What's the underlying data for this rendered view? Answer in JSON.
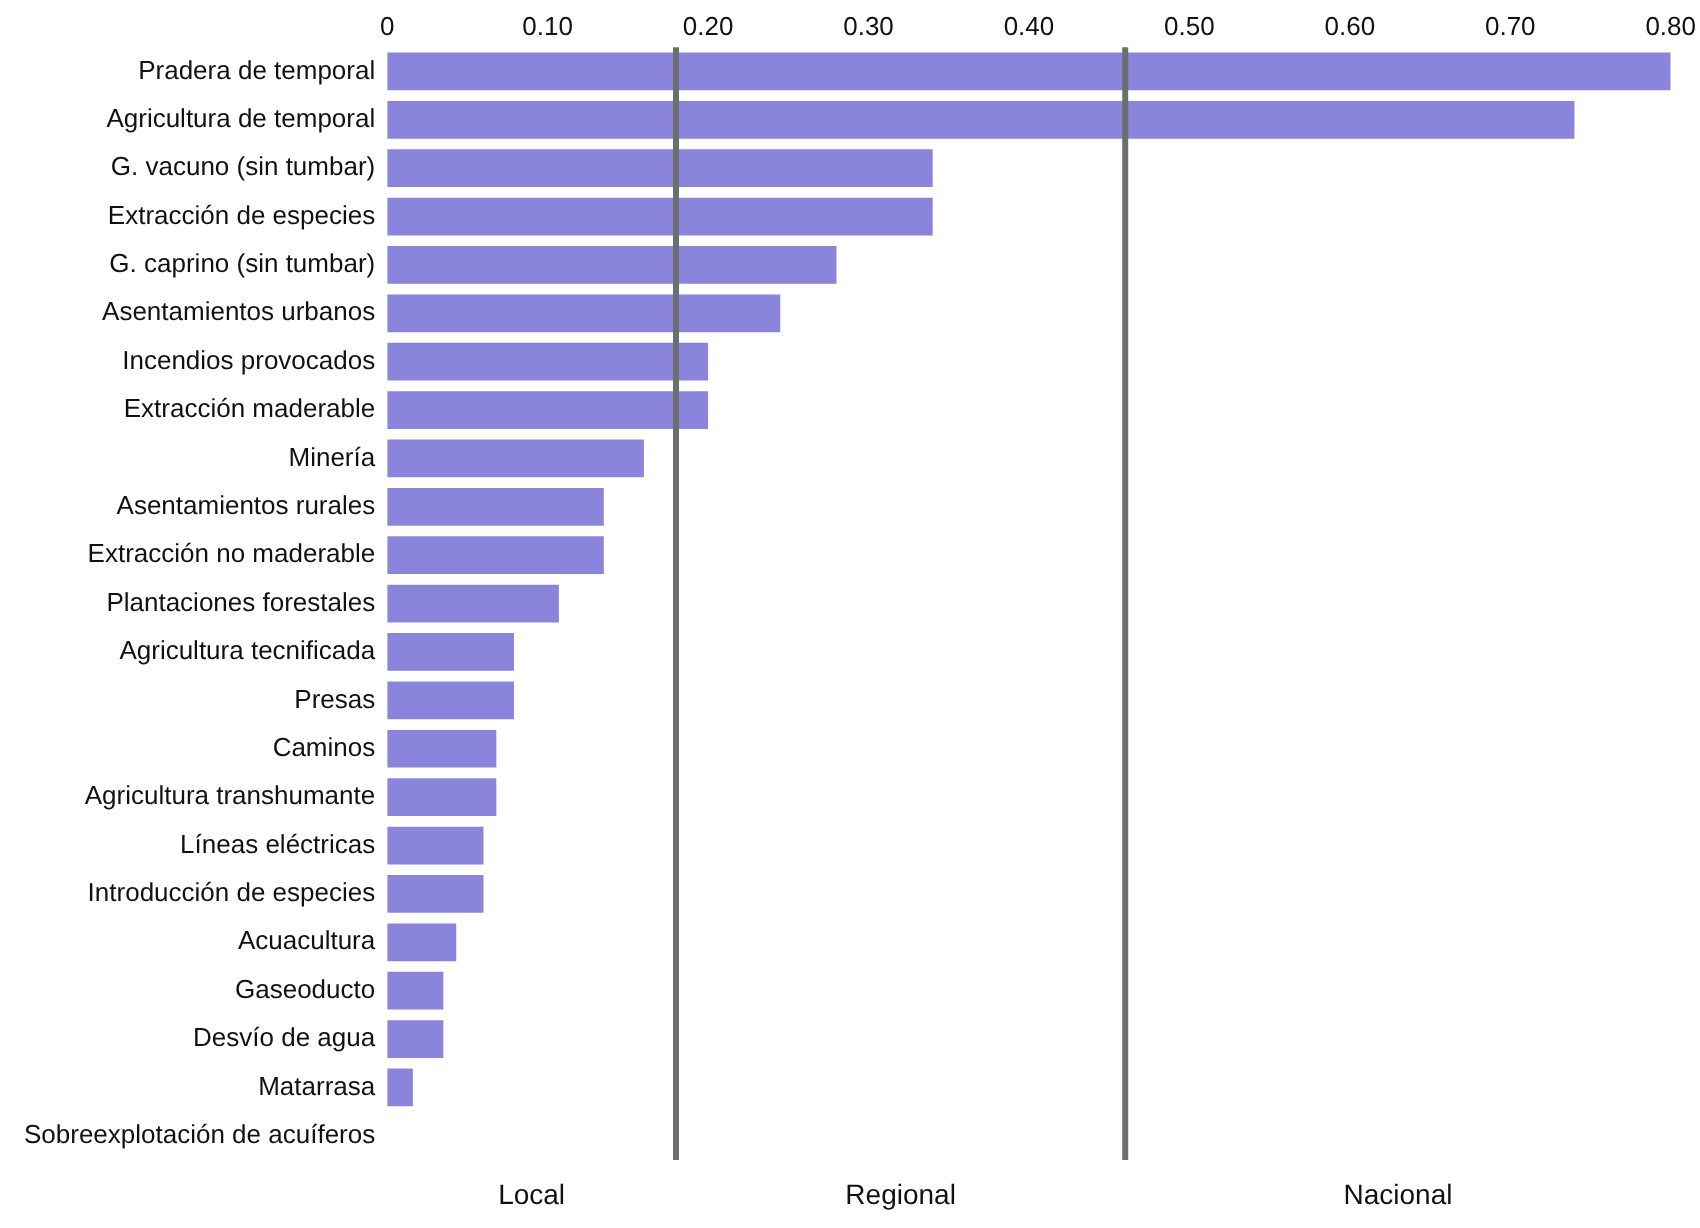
{
  "chart_data": {
    "type": "bar",
    "orientation": "horizontal",
    "categories": [
      "Pradera de temporal",
      "Agricultura de temporal",
      "G. vacuno (sin tumbar)",
      "Extracción de especies",
      "G. caprino (sin tumbar)",
      "Asentamientos urbanos",
      "Incendios provocados",
      "Extracción maderable",
      "Minería",
      "Asentamientos rurales",
      "Extracción no maderable",
      "Plantaciones forestales",
      "Agricultura tecnificada",
      "Presas",
      "Caminos",
      "Agricultura transhumante",
      "Líneas eléctricas",
      "Introducción de especies",
      "Acuacultura",
      "Gaseoducto",
      "Desvío de agua",
      "Matarrasa",
      "Sobreexplotación de acuíferos"
    ],
    "values": [
      0.8,
      0.74,
      0.34,
      0.34,
      0.28,
      0.245,
      0.2,
      0.2,
      0.16,
      0.135,
      0.135,
      0.107,
      0.079,
      0.079,
      0.068,
      0.068,
      0.06,
      0.06,
      0.043,
      0.035,
      0.035,
      0.016,
      0
    ],
    "color": "#8a84dc",
    "xlim": [
      0,
      0.8
    ],
    "xticks": [
      0,
      {
        "value": 0.1,
        "label": "0.10"
      },
      {
        "value": 0.2,
        "label": "0.20"
      },
      {
        "value": 0.3,
        "label": "0.30"
      },
      {
        "value": 0.4,
        "label": "0.40"
      },
      {
        "value": 0.5,
        "label": "0.50"
      },
      {
        "value": 0.6,
        "label": "0.60"
      },
      {
        "value": 0.7,
        "label": "0.70"
      },
      {
        "value": 0.8,
        "label": "0.80"
      }
    ],
    "ref_lines": [
      {
        "axis": "x",
        "value": 0.18,
        "color": "#6e6e6e"
      },
      {
        "axis": "x",
        "value": 0.46,
        "color": "#6e6e6e"
      }
    ],
    "annotations": [
      "Local",
      "Regional",
      "Nacional"
    ],
    "grid": false,
    "legend": false
  }
}
